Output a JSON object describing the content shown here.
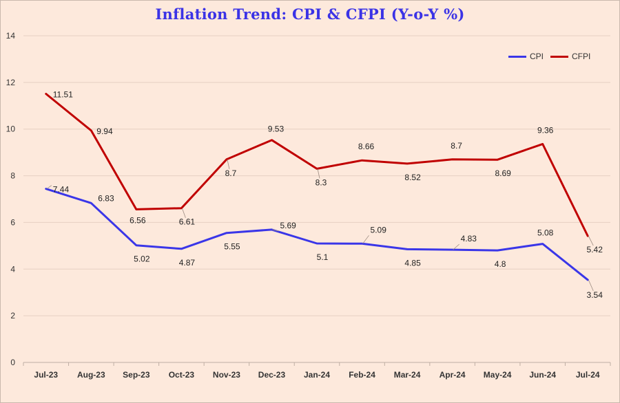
{
  "chart_data": {
    "type": "line",
    "title": "Inflation Trend: CPI & CFPI (Y-o-Y %)",
    "categories": [
      "Jul-23",
      "Aug-23",
      "Sep-23",
      "Oct-23",
      "Nov-23",
      "Dec-23",
      "Jan-24",
      "Feb-24",
      "Mar-24",
      "Apr-24",
      "May-24",
      "Jun-24",
      "Jul-24"
    ],
    "series": [
      {
        "name": "CPI",
        "color": "#3a36e8",
        "values": [
          7.44,
          6.83,
          5.02,
          4.87,
          5.55,
          5.69,
          5.1,
          5.09,
          4.85,
          4.83,
          4.8,
          5.08,
          3.54
        ],
        "labels": [
          "7.44",
          "6.83",
          "5.02",
          "4.87",
          "5.55",
          "5.69",
          "5.1",
          "5.09",
          "4.85",
          "4.83",
          "4.8",
          "5.08",
          "3.54"
        ]
      },
      {
        "name": "CFPI",
        "color": "#c00000",
        "values": [
          11.51,
          9.94,
          6.56,
          6.61,
          8.7,
          9.53,
          8.3,
          8.66,
          8.52,
          8.7,
          8.69,
          9.36,
          5.42
        ],
        "labels": [
          "11.51",
          "9.94",
          "6.56",
          "6.61",
          "8.7",
          "9.53",
          "8.3",
          "8.66",
          "8.52",
          "8.7",
          "8.69",
          "9.36",
          "5.42"
        ]
      }
    ],
    "ylim": [
      0,
      14
    ],
    "yticks": [
      "0",
      "2",
      "4",
      "6",
      "8",
      "10",
      "12",
      "14"
    ],
    "grid": true,
    "legend_position": "top-right"
  }
}
